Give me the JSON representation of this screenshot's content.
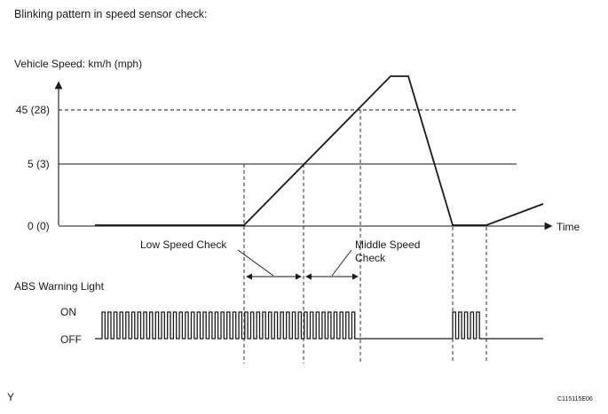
{
  "diagram": {
    "title": "Blinking pattern in speed sensor check:",
    "speed_axis_label": "Vehicle Speed: km/h (mph)",
    "speed_ticks": [
      "45 (28)",
      "5 (3)",
      "0 (0)"
    ],
    "time_label": "Time",
    "low_speed_check_label": "Low Speed Check",
    "middle_speed_check_label": [
      "Middle Speed",
      "Check"
    ],
    "abs_label": "ABS Warning Light",
    "on_label": "ON",
    "off_label": "OFF",
    "corner_label": "Y",
    "figure_code": "C115115E06"
  }
}
